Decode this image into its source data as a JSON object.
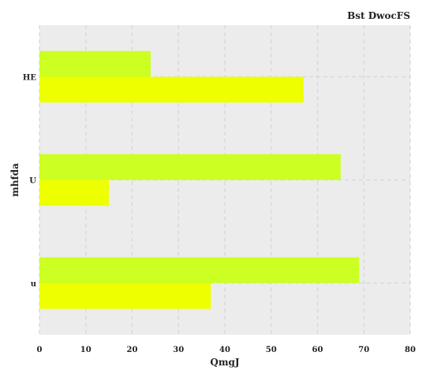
{
  "chart_data": {
    "type": "bar",
    "orientation": "horizontal",
    "title": "Bst  DwocFS",
    "xlabel": "QmgJ",
    "ylabel": "mhfda",
    "categories": [
      "HE",
      "U",
      "u"
    ],
    "series": [
      {
        "values": [
          24,
          65,
          69
        ],
        "color": "#ccff22"
      },
      {
        "values": [
          57,
          15,
          37
        ],
        "color": "#eeff00"
      }
    ],
    "xlim": [
      0,
      80
    ],
    "xticks": [
      0,
      10,
      20,
      30,
      40,
      50,
      60,
      70,
      80
    ],
    "grid": true,
    "grid_style": "dashed",
    "background": "#ececec"
  }
}
